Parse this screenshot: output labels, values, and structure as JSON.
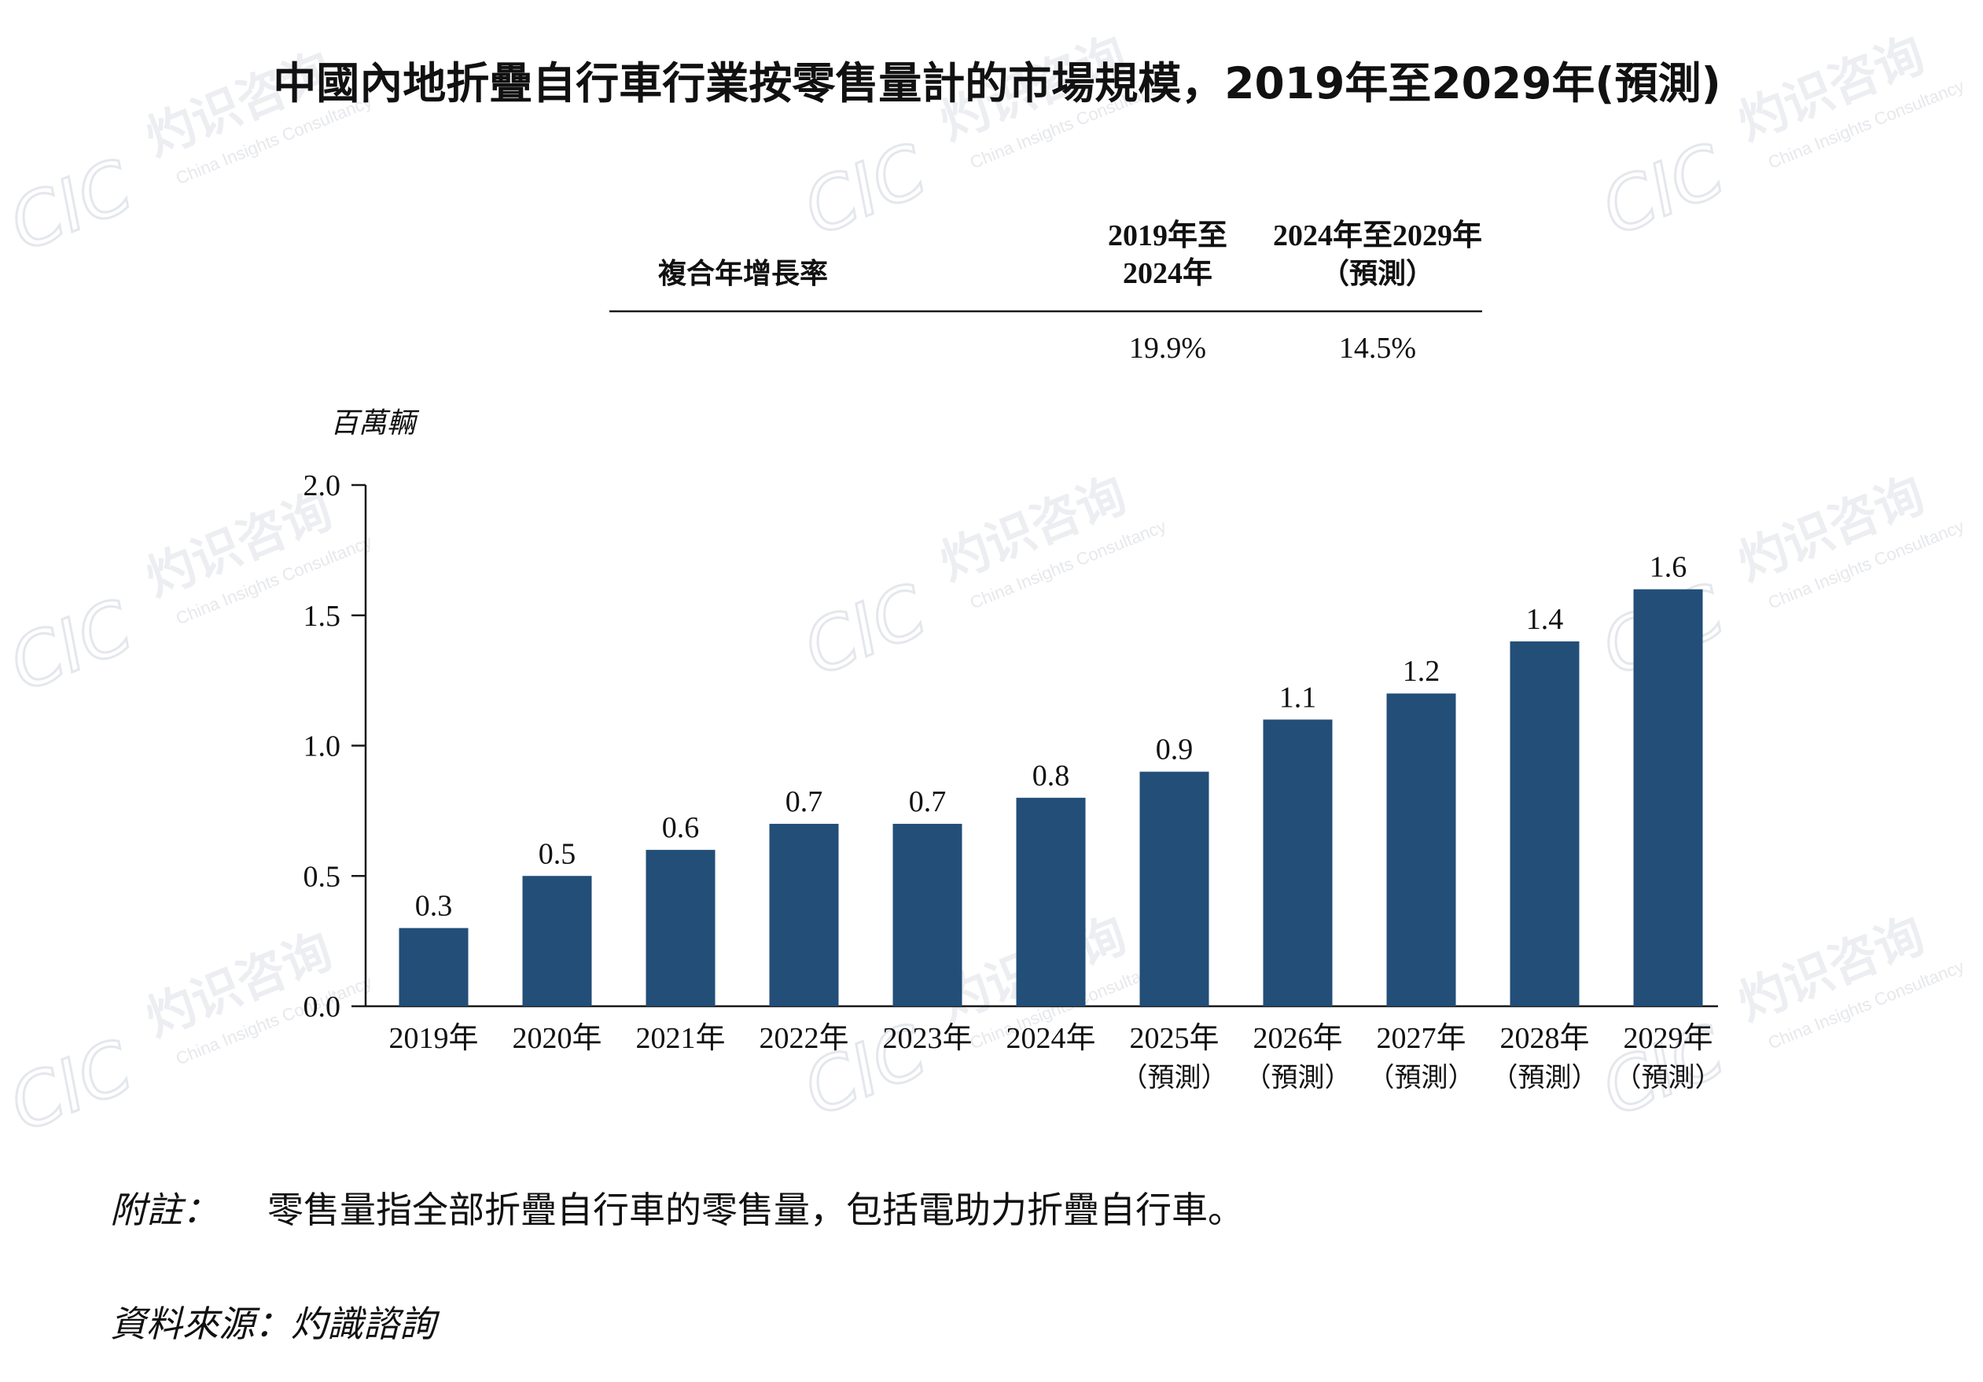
{
  "title": "中國內地折疊自行車行業按零售量計的市場規模，2019年至2029年(預測)",
  "watermark": {
    "logo": "CIC",
    "cn": "灼识咨询",
    "en": "China Insights Consultancy"
  },
  "cagr_table": {
    "row_label": "複合年增長率",
    "col1_header": [
      "2019年至",
      "2024年"
    ],
    "col2_header": [
      "2024年至2029年",
      "（預測）"
    ],
    "col1_value": "19.9%",
    "col2_value": "14.5%"
  },
  "note": {
    "label": "附註：",
    "text": "零售量指全部折疊自行車的零售量，包括電助力折疊自行車。"
  },
  "source": "資料來源：灼識諮詢",
  "colors": {
    "bar": "#224e78",
    "axis": "#1a1a1a"
  },
  "chart_data": {
    "type": "bar",
    "title": "中國內地折疊自行車行業按零售量計的市場規模，2019年至2029年(預測)",
    "ylabel": "百萬輛",
    "xlabel": "",
    "ylim": [
      0,
      2.0
    ],
    "yticks": [
      "0.0",
      "0.5",
      "1.0",
      "1.5",
      "2.0"
    ],
    "grid": false,
    "categories": [
      "2019年",
      "2020年",
      "2021年",
      "2022年",
      "2023年",
      "2024年",
      "2025年",
      "2026年",
      "2027年",
      "2028年",
      "2029年"
    ],
    "category_sublabels": [
      "",
      "",
      "",
      "",
      "",
      "",
      "（預測）",
      "（預測）",
      "（預測）",
      "（預測）",
      "（預測）"
    ],
    "values": [
      0.3,
      0.5,
      0.6,
      0.7,
      0.7,
      0.8,
      0.9,
      1.1,
      1.2,
      1.4,
      1.6
    ],
    "data_labels": [
      "0.3",
      "0.5",
      "0.6",
      "0.7",
      "0.7",
      "0.8",
      "0.9",
      "1.1",
      "1.2",
      "1.4",
      "1.6"
    ]
  }
}
